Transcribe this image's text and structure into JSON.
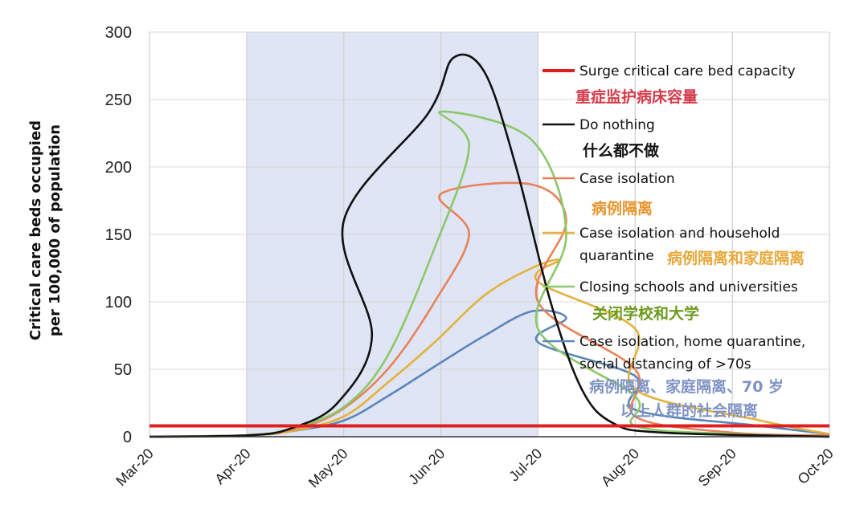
{
  "chart_data": {
    "type": "line",
    "title": "",
    "ylabel": [
      "Critical care beds occupied",
      "per 100,000 of population"
    ],
    "xlabel": "",
    "ylim": [
      0,
      300
    ],
    "yticks": [
      "0",
      "50",
      "100",
      "150",
      "200",
      "250",
      "300"
    ],
    "x_ticks": [
      "Mar-20",
      "Apr-20",
      "May-20",
      "Jun-20",
      "Jul-20",
      "Aug-20",
      "Sep-20",
      "Oct-20"
    ],
    "grid": true,
    "shaded_interval": [
      "Apr-20",
      "Jul-20"
    ],
    "legend_position": "right",
    "series": [
      {
        "name": "Surge critical care bed capacity",
        "name_cn": "重症监护病床容量",
        "color": "#e02020",
        "label_color": "#d63a4a",
        "x": [
          "Mar-20",
          "Oct-20"
        ],
        "y": [
          8,
          8
        ]
      },
      {
        "name": "Do nothing",
        "name_cn": "什么都不做",
        "color": "#111111",
        "label_color": "#111111",
        "x": [
          "Mar-20",
          "Apr-01",
          "Apr-15",
          "Apr-30",
          "May-10",
          "May-20",
          "May-28",
          "Jun-05",
          "Jun-15",
          "Jun-25",
          "Jul-05",
          "Jul-15",
          "Jul-25",
          "Aug-10",
          "Oct-20"
        ],
        "y": [
          0,
          1,
          6,
          25,
          75,
          160,
          240,
          281,
          270,
          200,
          100,
          35,
          10,
          3,
          0
        ]
      },
      {
        "name": "Case isolation",
        "name_cn": "病例隔离",
        "color": "#e8825a",
        "label_color": "#e8952d",
        "x": [
          "Mar-20",
          "Apr-01",
          "Apr-15",
          "Apr-30",
          "May-15",
          "May-30",
          "Jun-10",
          "Jun-20",
          "Jun-30",
          "Jul-10",
          "Jul-20",
          "Aug-01",
          "Aug-20",
          "Sep-20",
          "Oct-20"
        ],
        "y": [
          0,
          1,
          5,
          18,
          50,
          100,
          150,
          180,
          187,
          160,
          100,
          50,
          15,
          3,
          1
        ]
      },
      {
        "name": "Case isolation and household quarantine",
        "label_lines": [
          "Case isolation and household",
          "quarantine"
        ],
        "name_cn": "病例隔离和家庭隔离",
        "color": "#e3b23c",
        "label_color": "#e8a83a",
        "x": [
          "Mar-20",
          "Apr-01",
          "Apr-15",
          "May-01",
          "May-15",
          "May-30",
          "Jun-15",
          "Jun-30",
          "Jul-08",
          "Jul-20",
          "Aug-01",
          "Aug-20",
          "Sep-10",
          "Oct-20"
        ],
        "y": [
          0,
          1,
          4,
          15,
          40,
          70,
          105,
          125,
          131,
          115,
          80,
          35,
          12,
          2
        ]
      },
      {
        "name": "Closing schools and universities",
        "name_cn": "关闭学校和大学",
        "color": "#8cc86a",
        "label_color": "#6e9a1e",
        "x": [
          "Mar-20",
          "Apr-01",
          "Apr-15",
          "May-01",
          "May-15",
          "May-30",
          "Jun-10",
          "Jun-20",
          "Jun-30",
          "Jul-10",
          "Jul-20",
          "Aug-01",
          "Aug-20",
          "Sep-20",
          "Oct-20"
        ],
        "y": [
          0,
          1,
          6,
          22,
          60,
          140,
          215,
          241,
          220,
          150,
          80,
          30,
          8,
          2,
          0
        ]
      },
      {
        "name": "Case isolation, home quarantine, social distancing of >70s",
        "label_lines": [
          "Case isolation, home quarantine,",
          "social distancing of >70s"
        ],
        "name_cn": "病例隔离、家庭隔离、70岁以上人群的社会隔离",
        "label_cn_lines": [
          "病例隔离、家庭隔离、70 岁",
          "以上人群的社会隔离"
        ],
        "color": "#5b86b8",
        "label_color": "#7f93c4",
        "x": [
          "Mar-20",
          "Apr-01",
          "Apr-15",
          "May-01",
          "May-15",
          "Jun-01",
          "Jun-15",
          "Jun-30",
          "Jul-10",
          "Jul-20",
          "Aug-01",
          "Aug-20",
          "Sep-10",
          "Oct-20"
        ],
        "y": [
          0,
          1,
          4,
          12,
          30,
          55,
          75,
          93,
          88,
          70,
          45,
          20,
          8,
          2
        ]
      }
    ]
  }
}
